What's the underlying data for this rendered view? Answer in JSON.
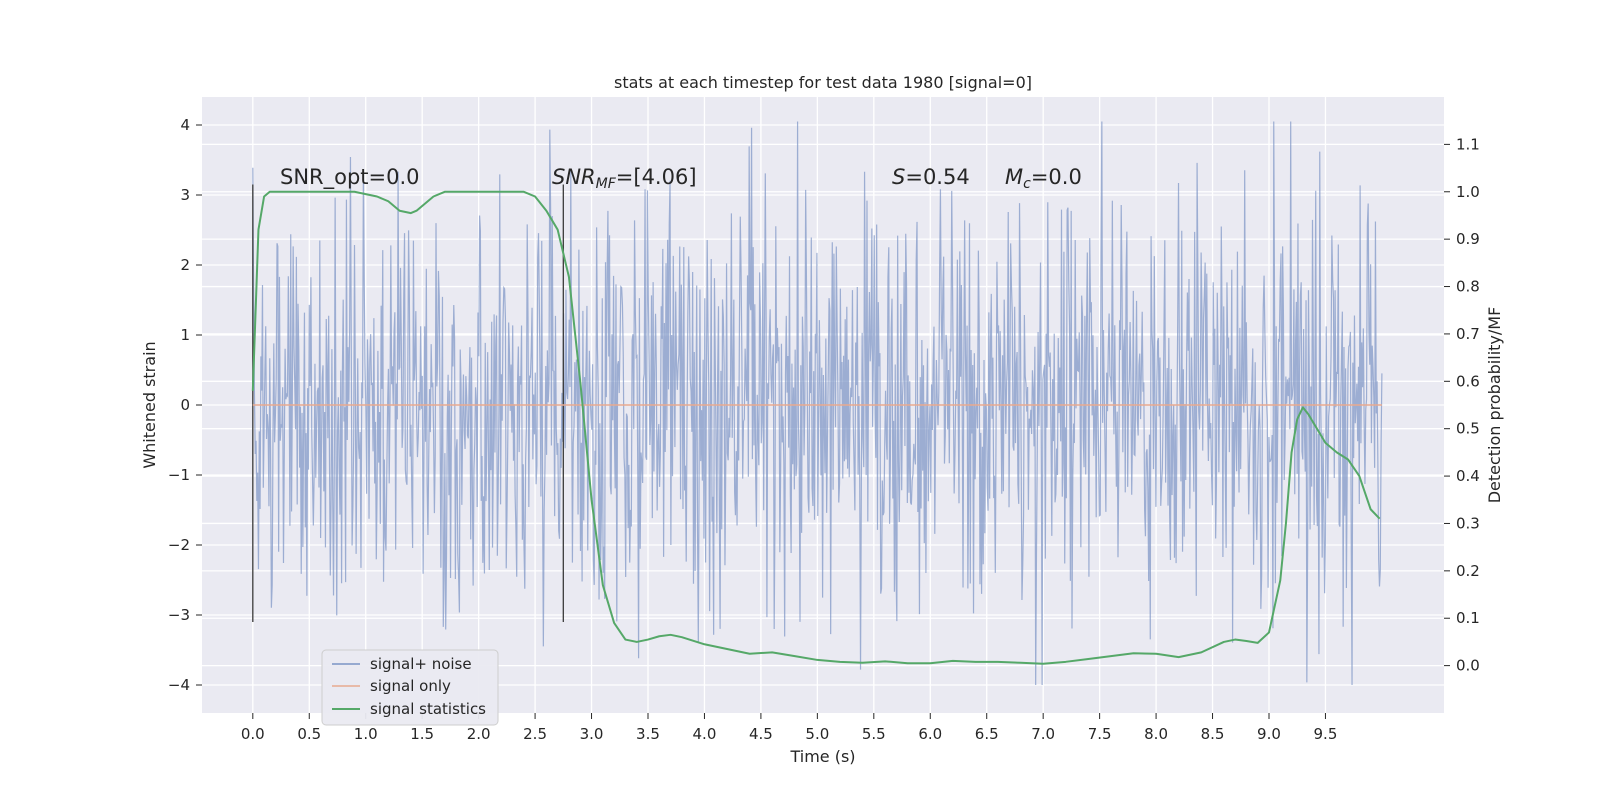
{
  "chart_data": {
    "type": "line",
    "title": "stats at each timestep for test data 1980 [signal=0]",
    "xlabel": "Time (s)",
    "ylabel": "Whitened strain",
    "y2label": "Detection probability/MF",
    "xlim": [
      -0.45,
      10.55
    ],
    "ylim": [
      -4.4,
      4.4
    ],
    "y2lim": [
      -0.1,
      1.2
    ],
    "x_ticks": [
      "0.0",
      "0.5",
      "1.0",
      "1.5",
      "2.0",
      "2.5",
      "3.0",
      "3.5",
      "4.0",
      "4.5",
      "5.0",
      "5.5",
      "6.0",
      "6.5",
      "7.0",
      "7.5",
      "8.0",
      "8.5",
      "9.0",
      "9.5"
    ],
    "y_ticks": [
      "−4",
      "−3",
      "−2",
      "−1",
      "0",
      "1",
      "2",
      "3",
      "4"
    ],
    "y2_ticks": [
      "0.0",
      "0.1",
      "0.2",
      "0.3",
      "0.4",
      "0.5",
      "0.6",
      "0.7",
      "0.8",
      "0.9",
      "1.0",
      "1.1"
    ],
    "grid": true,
    "legend_position": "lower-left",
    "annotations": {
      "snr_opt": "SNR_opt=0.0",
      "snr_mf_main": "SNR",
      "snr_mf_sub": "MF",
      "snr_mf_value": "=[4.06]",
      "s_var": "S",
      "s_value": "=0.54",
      "mc_var": "M",
      "mc_sub": "c",
      "mc_value": "=0.0"
    },
    "vertical_markers": [
      0.0,
      2.75
    ],
    "series": [
      {
        "name": "signal+ noise",
        "color": "#7b93c5",
        "kind": "noise",
        "x_range": [
          0.0,
          10.0
        ],
        "sigma": 1.0,
        "y_range": [
          -4.0,
          4.05
        ]
      },
      {
        "name": "signal only",
        "color": "#e8a98f",
        "x": [
          0.0,
          10.0
        ],
        "y": [
          0.0,
          0.0
        ]
      },
      {
        "name": "signal statistics",
        "color": "#55a868",
        "axis": "y2",
        "x": [
          0.0,
          0.05,
          0.1,
          0.15,
          0.2,
          0.3,
          0.5,
          0.7,
          0.9,
          1.1,
          1.2,
          1.3,
          1.4,
          1.45,
          1.5,
          1.6,
          1.7,
          1.8,
          2.0,
          2.2,
          2.4,
          2.5,
          2.6,
          2.7,
          2.8,
          2.9,
          3.0,
          3.1,
          3.2,
          3.3,
          3.4,
          3.5,
          3.6,
          3.7,
          3.8,
          4.0,
          4.2,
          4.4,
          4.6,
          4.8,
          5.0,
          5.2,
          5.4,
          5.6,
          5.8,
          6.0,
          6.2,
          6.4,
          6.6,
          6.8,
          7.0,
          7.2,
          7.4,
          7.6,
          7.8,
          8.0,
          8.2,
          8.4,
          8.6,
          8.7,
          8.8,
          8.9,
          9.0,
          9.1,
          9.15,
          9.2,
          9.25,
          9.3,
          9.35,
          9.4,
          9.5,
          9.6,
          9.7,
          9.8,
          9.9,
          9.98
        ],
        "y": [
          0.58,
          0.92,
          0.99,
          1.0,
          1.0,
          1.0,
          1.0,
          1.0,
          1.0,
          0.99,
          0.98,
          0.96,
          0.955,
          0.96,
          0.97,
          0.99,
          1.0,
          1.0,
          1.0,
          1.0,
          1.0,
          0.99,
          0.96,
          0.92,
          0.82,
          0.6,
          0.35,
          0.17,
          0.09,
          0.055,
          0.05,
          0.055,
          0.062,
          0.065,
          0.06,
          0.045,
          0.035,
          0.025,
          0.028,
          0.02,
          0.012,
          0.008,
          0.006,
          0.009,
          0.005,
          0.005,
          0.01,
          0.008,
          0.008,
          0.006,
          0.004,
          0.008,
          0.014,
          0.02,
          0.026,
          0.025,
          0.018,
          0.028,
          0.05,
          0.055,
          0.052,
          0.048,
          0.07,
          0.18,
          0.3,
          0.45,
          0.52,
          0.545,
          0.53,
          0.51,
          0.47,
          0.45,
          0.435,
          0.4,
          0.33,
          0.31
        ]
      }
    ]
  }
}
